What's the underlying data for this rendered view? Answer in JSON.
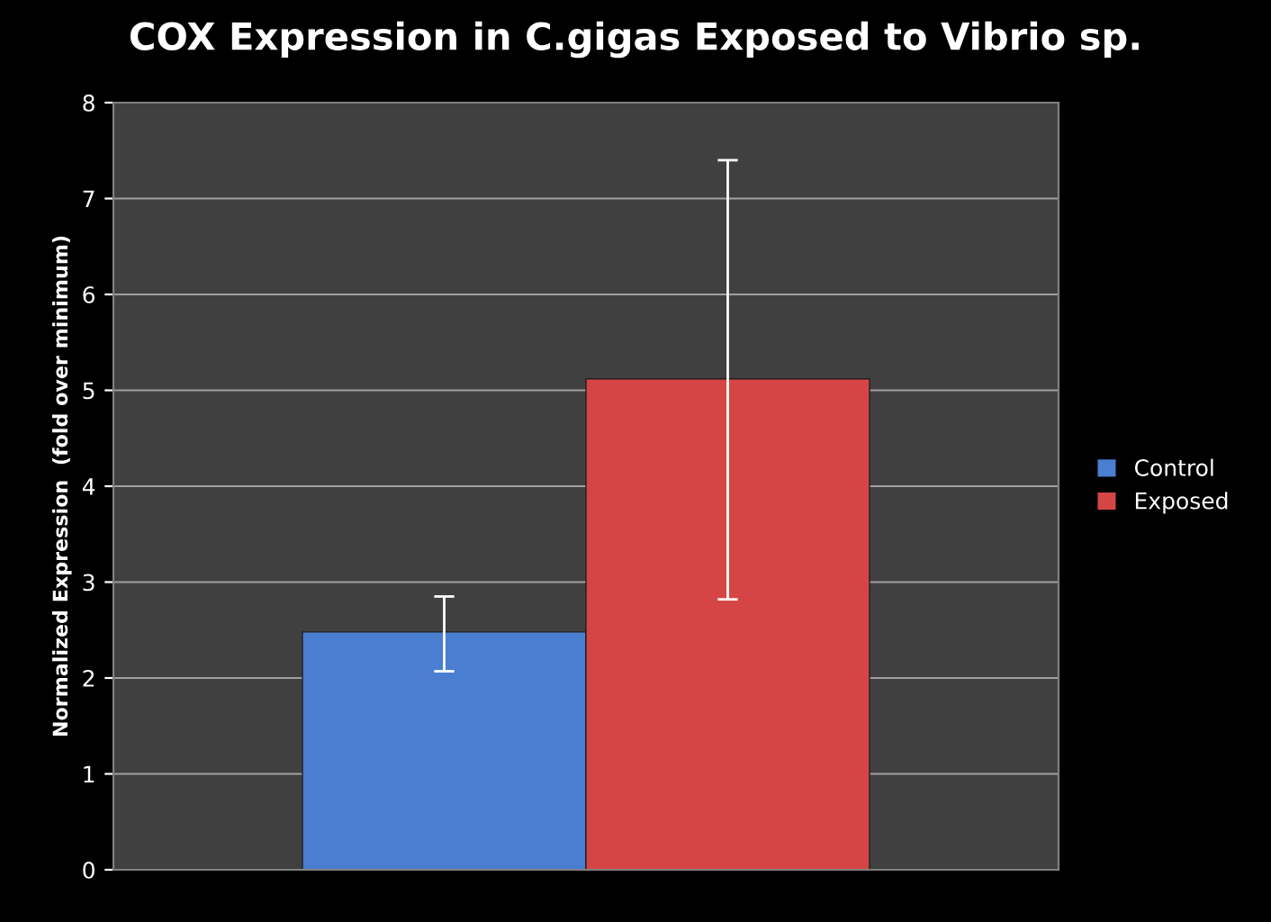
{
  "chart_data": {
    "type": "bar",
    "title": "COX Expression in C.gigas Exposed to Vibrio sp.",
    "ylabel": "Normalized Expression  (fold over minimum)",
    "categories": [
      null
    ],
    "series": [
      {
        "name": "Control",
        "color": "#4a7ed0",
        "values": [
          2.48
        ],
        "errors": [
          [
            2.07,
            2.85
          ]
        ]
      },
      {
        "name": "Exposed",
        "color": "#d54545",
        "values": [
          5.12
        ],
        "errors": [
          [
            2.82,
            7.4
          ]
        ]
      }
    ],
    "ylim": [
      0,
      8
    ],
    "yticks": [
      0,
      1,
      2,
      3,
      4,
      5,
      6,
      7,
      8
    ],
    "grid": "y",
    "legend": "right"
  }
}
